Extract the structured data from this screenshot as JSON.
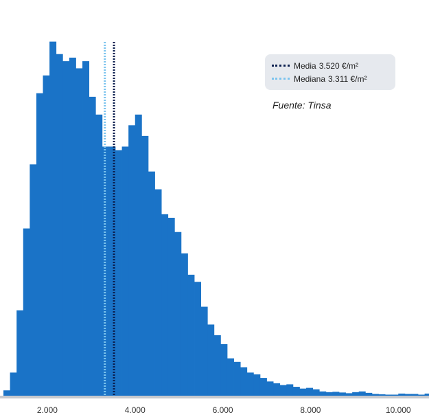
{
  "chart_data": {
    "type": "bar",
    "title": "",
    "xlabel": "",
    "ylabel": "",
    "x_unit": "€/m²",
    "bin_width": 150,
    "bins_start": 1000,
    "xlim": [
      1000,
      10700
    ],
    "ylim": [
      0,
      100
    ],
    "grid": false,
    "legend_position": "top-right",
    "x_ticks": [
      2000,
      4000,
      6000,
      8000,
      10000
    ],
    "x_tick_labels": [
      "2.000",
      "4.000",
      "6.000",
      "8.000",
      "10.000"
    ],
    "values": [
      1.5,
      6.5,
      24,
      47,
      65,
      85,
      90,
      99.5,
      96,
      94,
      95,
      92,
      94,
      84,
      79,
      70,
      70,
      69,
      70,
      76,
      79,
      73,
      63,
      58,
      51,
      50,
      46,
      40,
      34,
      32,
      25,
      20,
      17,
      14.5,
      10.5,
      9.5,
      8,
      6.5,
      6,
      5,
      4,
      3.5,
      3,
      3.2,
      2.5,
      2,
      2.2,
      1.8,
      1.2,
      1,
      1.1,
      0.9,
      0.7,
      1,
      1.2,
      0.8,
      0.5,
      0.4,
      0.3,
      0.3,
      0.6,
      0.5,
      0.5,
      0.3,
      0.6,
      0.2,
      0.2,
      0.1,
      0.2,
      0.2,
      0.2,
      0.1,
      0.05,
      0.1,
      0.05,
      0.05
    ],
    "bar_color": "#1a73c7",
    "mean": {
      "label": "Media",
      "value": 3520,
      "display": "3.520 €/m²",
      "color": "#0b1f4f"
    },
    "median": {
      "label": "Mediana",
      "value": 3311,
      "display": "3.311 €/m²",
      "color": "#7cc4ee"
    },
    "source": "Fuente: Tinsa"
  }
}
